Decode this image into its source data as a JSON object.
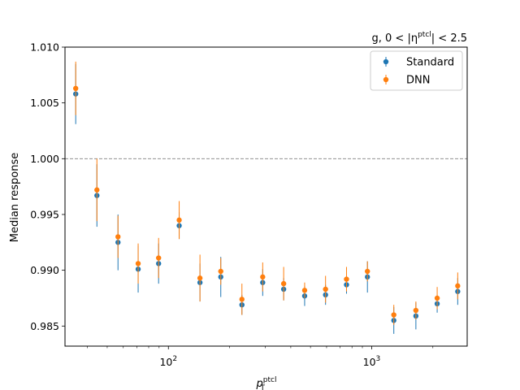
{
  "chart_data": {
    "type": "scatter",
    "annotation": "g, 0 < |η^ptcl| < 2.5",
    "xlabel": "p_T^ptcl",
    "ylabel": "Median response",
    "xscale": "log",
    "xlim": [
      31,
      2950
    ],
    "ylim": [
      0.9832,
      1.01
    ],
    "yticks": [
      "1.010",
      "1.005",
      "1.000",
      "0.995",
      "0.990",
      "0.985"
    ],
    "xticks": [
      "10^2",
      "10^3"
    ],
    "reference_line": 1.0,
    "legend_position": "top-right",
    "x": [
      35,
      44.5,
      56.5,
      71,
      89.5,
      113,
      143,
      181,
      230,
      291,
      369,
      468,
      593,
      752,
      953,
      1285,
      1650,
      2100,
      2650
    ],
    "series": [
      {
        "name": "Standard",
        "color": "#1f77b4",
        "values": [
          1.0058,
          0.9967,
          0.9925,
          0.9901,
          0.9906,
          0.994,
          0.9889,
          0.9894,
          0.9869,
          0.9889,
          0.9883,
          0.9877,
          0.9878,
          0.9887,
          0.9894,
          0.9855,
          0.9859,
          0.987,
          0.9881
        ],
        "err": [
          0.0027,
          0.0028,
          0.0025,
          0.0021,
          0.0018,
          0.0012,
          0.0017,
          0.0018,
          0.0009,
          0.0012,
          0.001,
          0.0009,
          0.0009,
          0.0008,
          0.0014,
          0.0012,
          0.0012,
          0.0008,
          0.0012
        ]
      },
      {
        "name": "DNN",
        "color": "#ff7f0e",
        "values": [
          1.0063,
          0.9972,
          0.993,
          0.9906,
          0.9911,
          0.9945,
          0.9893,
          0.9899,
          0.9874,
          0.9894,
          0.9888,
          0.9882,
          0.9883,
          0.9892,
          0.9899,
          0.986,
          0.9864,
          0.9875,
          0.9886
        ],
        "err": [
          0.0024,
          0.0028,
          0.0019,
          0.0018,
          0.0018,
          0.0017,
          0.0021,
          0.0012,
          0.0014,
          0.0013,
          0.0015,
          0.0007,
          0.0012,
          0.0011,
          0.0009,
          0.0009,
          0.0008,
          0.001,
          0.0012
        ]
      }
    ]
  }
}
